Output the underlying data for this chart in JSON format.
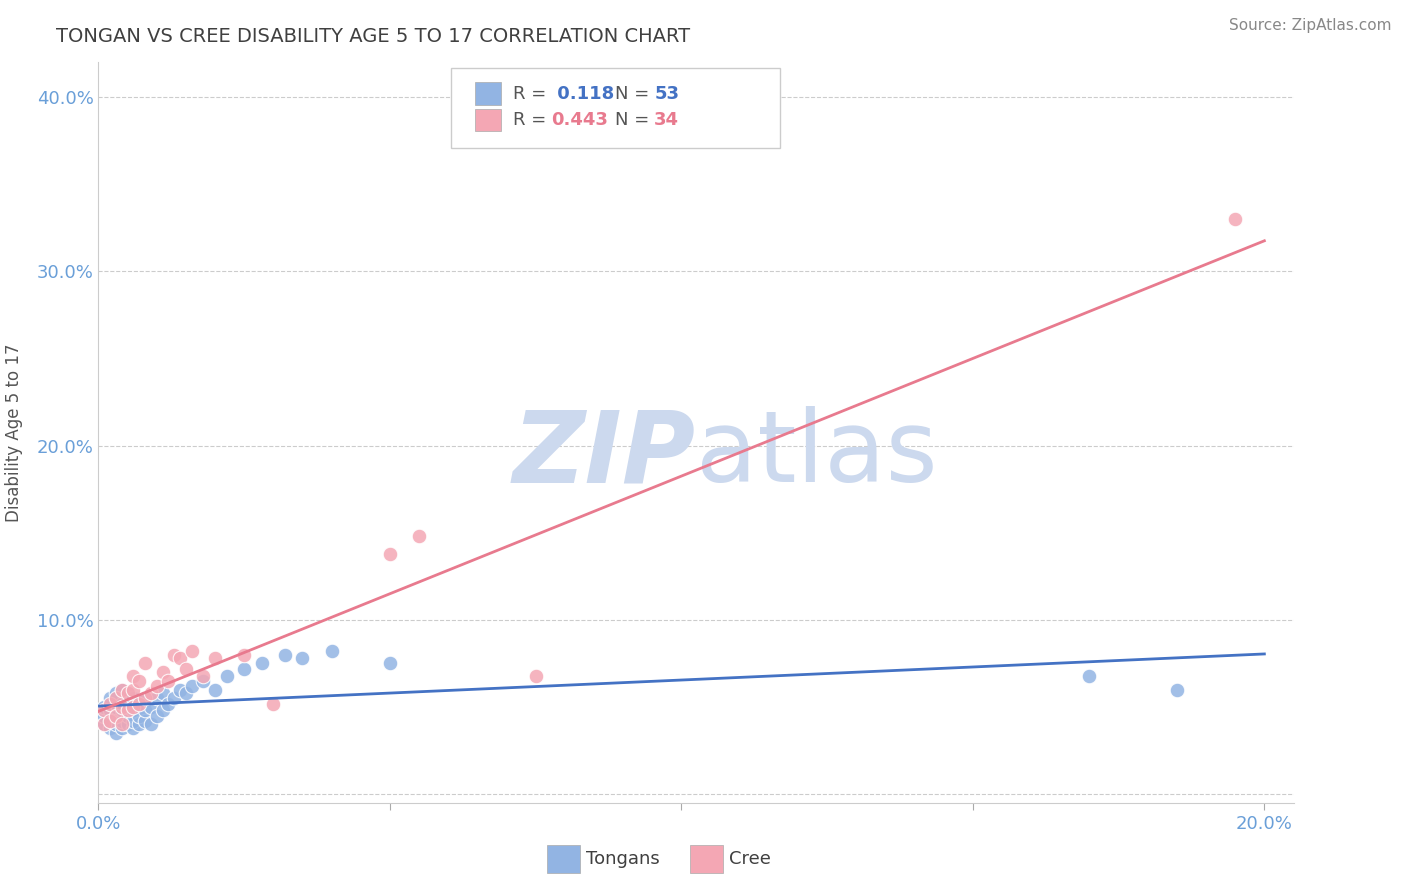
{
  "title": "TONGAN VS CREE DISABILITY AGE 5 TO 17 CORRELATION CHART",
  "source": "Source: ZipAtlas.com",
  "ylabel": "Disability Age 5 to 17",
  "xlim": [
    0.0,
    0.205
  ],
  "ylim": [
    -0.005,
    0.42
  ],
  "yticks": [
    0.0,
    0.1,
    0.2,
    0.3,
    0.4
  ],
  "xticks": [
    0.0,
    0.05,
    0.1,
    0.15,
    0.2
  ],
  "xtick_labels": [
    "0.0%",
    "",
    "",
    "",
    "20.0%"
  ],
  "ytick_labels": [
    "",
    "10.0%",
    "20.0%",
    "30.0%",
    "40.0%"
  ],
  "legend_R_tongan": "0.118",
  "legend_N_tongan": "53",
  "legend_R_cree": "0.443",
  "legend_N_cree": "34",
  "tongan_color": "#92b4e3",
  "cree_color": "#f4a7b4",
  "tongan_line_color": "#4472c4",
  "cree_line_color": "#e87a8e",
  "title_color": "#404040",
  "axis_color": "#6a9fd8",
  "watermark_color": "#ccd9ee",
  "background_color": "#ffffff",
  "tongan_x": [
    0.001,
    0.001,
    0.001,
    0.002,
    0.002,
    0.002,
    0.002,
    0.003,
    0.003,
    0.003,
    0.003,
    0.003,
    0.004,
    0.004,
    0.004,
    0.004,
    0.004,
    0.005,
    0.005,
    0.005,
    0.005,
    0.006,
    0.006,
    0.006,
    0.006,
    0.007,
    0.007,
    0.007,
    0.008,
    0.008,
    0.008,
    0.009,
    0.009,
    0.01,
    0.01,
    0.011,
    0.011,
    0.012,
    0.013,
    0.014,
    0.015,
    0.016,
    0.018,
    0.02,
    0.022,
    0.025,
    0.028,
    0.032,
    0.035,
    0.04,
    0.05,
    0.17,
    0.185
  ],
  "tongan_y": [
    0.04,
    0.045,
    0.05,
    0.038,
    0.042,
    0.048,
    0.055,
    0.035,
    0.04,
    0.045,
    0.05,
    0.058,
    0.038,
    0.042,
    0.048,
    0.052,
    0.06,
    0.04,
    0.045,
    0.05,
    0.058,
    0.038,
    0.042,
    0.048,
    0.055,
    0.04,
    0.045,
    0.052,
    0.042,
    0.048,
    0.055,
    0.04,
    0.05,
    0.045,
    0.055,
    0.048,
    0.058,
    0.052,
    0.055,
    0.06,
    0.058,
    0.062,
    0.065,
    0.06,
    0.068,
    0.072,
    0.075,
    0.08,
    0.078,
    0.082,
    0.075,
    0.068,
    0.06
  ],
  "cree_x": [
    0.001,
    0.001,
    0.002,
    0.002,
    0.003,
    0.003,
    0.004,
    0.004,
    0.004,
    0.005,
    0.005,
    0.006,
    0.006,
    0.006,
    0.007,
    0.007,
    0.008,
    0.008,
    0.009,
    0.01,
    0.011,
    0.012,
    0.013,
    0.014,
    0.015,
    0.016,
    0.018,
    0.02,
    0.025,
    0.03,
    0.05,
    0.055,
    0.075,
    0.195
  ],
  "cree_y": [
    0.04,
    0.048,
    0.042,
    0.052,
    0.045,
    0.055,
    0.04,
    0.05,
    0.06,
    0.048,
    0.058,
    0.05,
    0.06,
    0.068,
    0.052,
    0.065,
    0.055,
    0.075,
    0.058,
    0.062,
    0.07,
    0.065,
    0.08,
    0.078,
    0.072,
    0.082,
    0.068,
    0.078,
    0.08,
    0.052,
    0.138,
    0.148,
    0.068,
    0.33
  ]
}
